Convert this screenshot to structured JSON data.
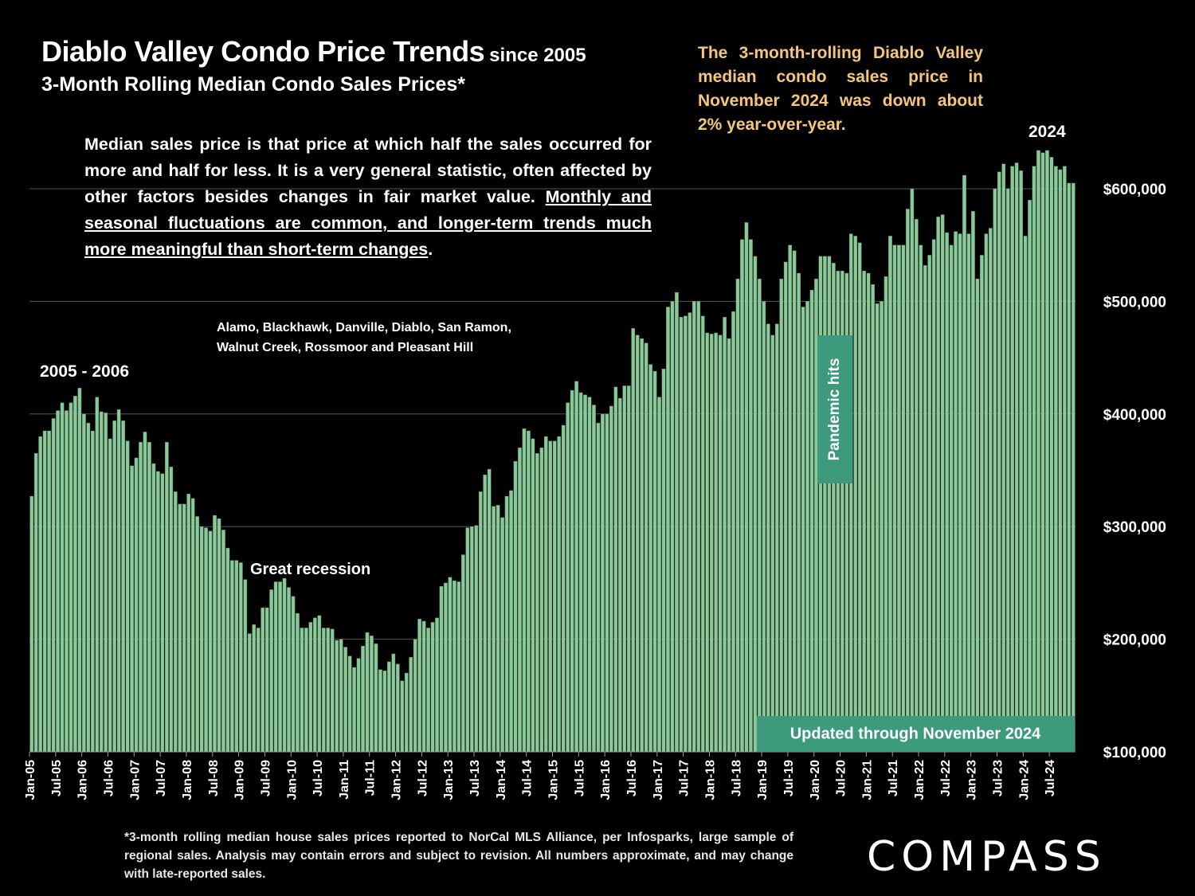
{
  "header": {
    "title": "Diablo Valley Condo Price Trends",
    "title_suffix": "since 2005",
    "subtitle": "3-Month Rolling Median Condo Sales Prices*"
  },
  "callout": {
    "text": "The 3-month-rolling Diablo Valley median condo sales price in November 2024 was down about 2% year-over-year.",
    "color": "#f6c778"
  },
  "note": {
    "plain": "Median sales price is that price at which half the sales occurred for more and half for less. It is a very general statistic, often affected by other factors besides changes in fair market value. ",
    "underlined": "Monthly and seasonal fluctuations are common, and longer-term trends much more meaningful than short-term changes",
    "end": "."
  },
  "footnote": "*3-month rolling median house sales prices reported to NorCal MLS Alliance, per Infosparks, large sample of regional sales. Analysis may contain errors and subject to revision. All numbers approximate, and may change with late-reported sales.",
  "logo": "COMPASS",
  "colors": {
    "background": "#000000",
    "bar_fill": "#8cc99a",
    "bar_edge": "#5a8f66",
    "label_box": "#3d9a7c",
    "callout_text": "#f6c778",
    "gridline": "#555555"
  },
  "chart_data": {
    "type": "bar",
    "ylim": [
      100000,
      650000
    ],
    "ytick_values": [
      100000,
      200000,
      300000,
      400000,
      500000,
      600000
    ],
    "ytick_labels": [
      "$100,000",
      "$200,000",
      "$300,000",
      "$400,000",
      "$500,000",
      "$600,000"
    ],
    "xtick_labels": [
      "Jan-05",
      "Jul-05",
      "Jan-06",
      "Jul-06",
      "Jan-07",
      "Jul-07",
      "Jan-08",
      "Jul-08",
      "Jan-09",
      "Jul-09",
      "Jan-10",
      "Jul-10",
      "Jan-11",
      "Jul-11",
      "Jan-12",
      "Jul-12",
      "Jan-13",
      "Jul-13",
      "Jan-14",
      "Jul-14",
      "Jan-15",
      "Jul-15",
      "Jan-16",
      "Jul-16",
      "Jan-17",
      "Jul-17",
      "Jan-18",
      "Jul-18",
      "Jan-19",
      "Jul-19",
      "Jan-20",
      "Jul-20",
      "Jan-21",
      "Jul-21",
      "Jan-22",
      "Jul-22",
      "Jan-23",
      "Jul-23",
      "Jan-24",
      "Jul-24"
    ],
    "first_month": "Jan-05",
    "values": [
      327000,
      365000,
      380000,
      385000,
      385000,
      396000,
      403000,
      410000,
      403000,
      410000,
      416000,
      423000,
      400000,
      392000,
      385000,
      415000,
      402000,
      401000,
      378000,
      394000,
      404000,
      394000,
      376000,
      354000,
      361000,
      375000,
      384000,
      375000,
      356000,
      349000,
      347000,
      375000,
      353000,
      331000,
      320000,
      320000,
      329000,
      325000,
      309000,
      300000,
      299000,
      296000,
      310000,
      307000,
      297000,
      281000,
      270000,
      270000,
      268000,
      253000,
      205000,
      213000,
      210000,
      228000,
      228000,
      244000,
      251000,
      251000,
      254000,
      246000,
      238000,
      223000,
      210000,
      210000,
      215000,
      219000,
      221000,
      210000,
      210000,
      209000,
      199000,
      200000,
      193000,
      185000,
      175000,
      183000,
      194000,
      206000,
      203000,
      196000,
      173000,
      172000,
      180000,
      187000,
      178000,
      163000,
      170000,
      184000,
      200000,
      218000,
      216000,
      210000,
      215000,
      219000,
      247000,
      250000,
      255000,
      252000,
      251000,
      275000,
      299000,
      300000,
      301000,
      331000,
      346000,
      351000,
      318000,
      319000,
      308000,
      327000,
      332000,
      358000,
      370000,
      387000,
      385000,
      378000,
      365000,
      370000,
      380000,
      376000,
      376000,
      380000,
      390000,
      410000,
      421000,
      429000,
      419000,
      417000,
      415000,
      408000,
      392000,
      400000,
      400000,
      407000,
      424000,
      414000,
      425000,
      425000,
      476000,
      470000,
      467000,
      463000,
      444000,
      438000,
      415000,
      440000,
      495000,
      500000,
      508000,
      486000,
      487000,
      490000,
      500000,
      500000,
      487000,
      472000,
      471000,
      472000,
      470000,
      486000,
      467000,
      491000,
      520000,
      555000,
      570000,
      555000,
      540000,
      520000,
      500000,
      480000,
      470000,
      480000,
      520000,
      535000,
      550000,
      545000,
      525000,
      495000,
      500000,
      510000,
      520000,
      540000,
      540000,
      540000,
      534000,
      527000,
      527000,
      525000,
      560000,
      558000,
      552000,
      527000,
      525000,
      515000,
      498000,
      500000,
      522000,
      558000,
      550000,
      550000,
      550000,
      582000,
      600000,
      573000,
      550000,
      532000,
      541000,
      555000,
      575000,
      577000,
      561000,
      550000,
      562000,
      560000,
      612000,
      560000,
      580000,
      520000,
      541000,
      560000,
      565000,
      600000,
      615000,
      622000,
      600000,
      620000,
      623000,
      616000,
      558000,
      590000,
      620000,
      634000,
      632000,
      634000,
      628000,
      620000,
      617000,
      620000,
      605000,
      605000
    ]
  },
  "annotations": {
    "era_left": "2005 - 2006",
    "era_right": "2024",
    "recession": "Great recession",
    "region": "Alamo, Blackhawk, Danville, Diablo, San Ramon,\nWalnut Creek, Rossmoor and Pleasant Hill",
    "pandemic": "Pandemic hits",
    "updated": "Updated through November 2024"
  }
}
